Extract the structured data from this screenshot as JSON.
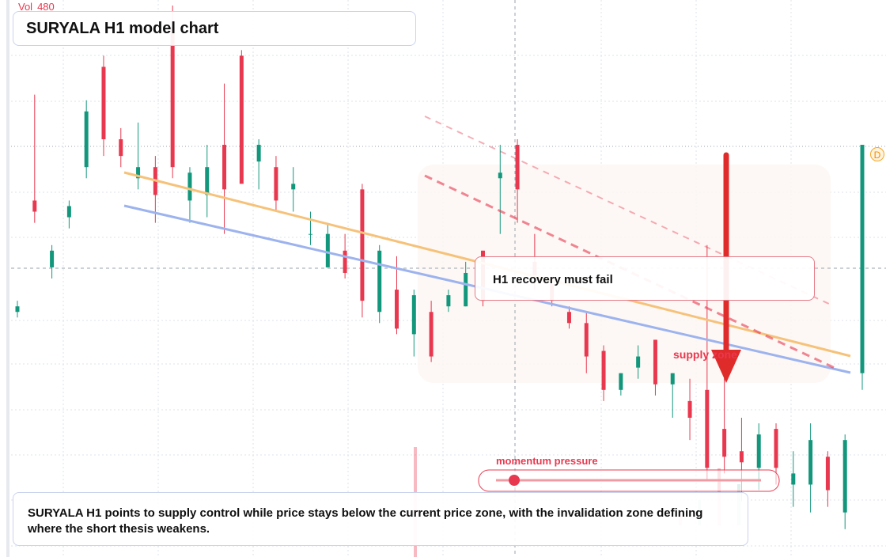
{
  "chart_data": {
    "type": "candlestick",
    "title": "SURYALA H1 model chart",
    "volume_label": "Vol",
    "volume": 480,
    "annotation": "H1 recovery must fail",
    "zone_label": "supply zone",
    "pressure_label": "momentum pressure",
    "badge": "D",
    "caption": "SURYALA H1 points to supply control while price stays below the current price zone, with the invalidation zone defining where the short thesis weakens.",
    "up_color": "#13977c",
    "down_color": "#e8384f",
    "ylim": [
      0,
      100
    ],
    "candles": [
      [
        44,
        46,
        43,
        45
      ],
      [
        64,
        83,
        60,
        62
      ],
      [
        52,
        56,
        50,
        55
      ],
      [
        61,
        64,
        59,
        63
      ],
      [
        70,
        82,
        68,
        80
      ],
      [
        88,
        90,
        72,
        75
      ],
      [
        75,
        77,
        70,
        72
      ],
      [
        68,
        78,
        66,
        70
      ],
      [
        70,
        72,
        60,
        65
      ],
      [
        95,
        99,
        68,
        70
      ],
      [
        64,
        70,
        60,
        69
      ],
      [
        65,
        74,
        61,
        70
      ],
      [
        74,
        85,
        58,
        66
      ],
      [
        90,
        91,
        68,
        67
      ],
      [
        71,
        75,
        66,
        74
      ],
      [
        70,
        72,
        62,
        64
      ],
      [
        66,
        70,
        62,
        67
      ],
      [
        58,
        62,
        56,
        58
      ],
      [
        52,
        60,
        52,
        58
      ],
      [
        55,
        58,
        50,
        51
      ],
      [
        66,
        67,
        43,
        46
      ],
      [
        44,
        56,
        42,
        55
      ],
      [
        48,
        54,
        40,
        41
      ],
      [
        40,
        48,
        36,
        47
      ],
      [
        44,
        46,
        35,
        36
      ],
      [
        45,
        48,
        44,
        47
      ],
      [
        45,
        53,
        45,
        51
      ],
      [
        55,
        55,
        45,
        46
      ],
      [
        68,
        74,
        58,
        69
      ],
      [
        74,
        75,
        60,
        66
      ],
      [
        53,
        58,
        48,
        50
      ],
      [
        49,
        49,
        45,
        46
      ],
      [
        44,
        45,
        41,
        42
      ],
      [
        42,
        44,
        33,
        36
      ],
      [
        37,
        38,
        28,
        30
      ],
      [
        30,
        33,
        29,
        33
      ],
      [
        34,
        38,
        32,
        36
      ],
      [
        39,
        39,
        29,
        31
      ],
      [
        31,
        33,
        25,
        33
      ],
      [
        28,
        32,
        21,
        25
      ],
      [
        30,
        56,
        14,
        16
      ],
      [
        23,
        39,
        15,
        18
      ],
      [
        19,
        25,
        10,
        17
      ],
      [
        16,
        24,
        12,
        22
      ],
      [
        23,
        24,
        13,
        16
      ],
      [
        13,
        19,
        9,
        15
      ],
      [
        13,
        24,
        8,
        21
      ],
      [
        18,
        19,
        9,
        12
      ],
      [
        8,
        22,
        5,
        21
      ],
      [
        33,
        74,
        30,
        74
      ]
    ]
  }
}
